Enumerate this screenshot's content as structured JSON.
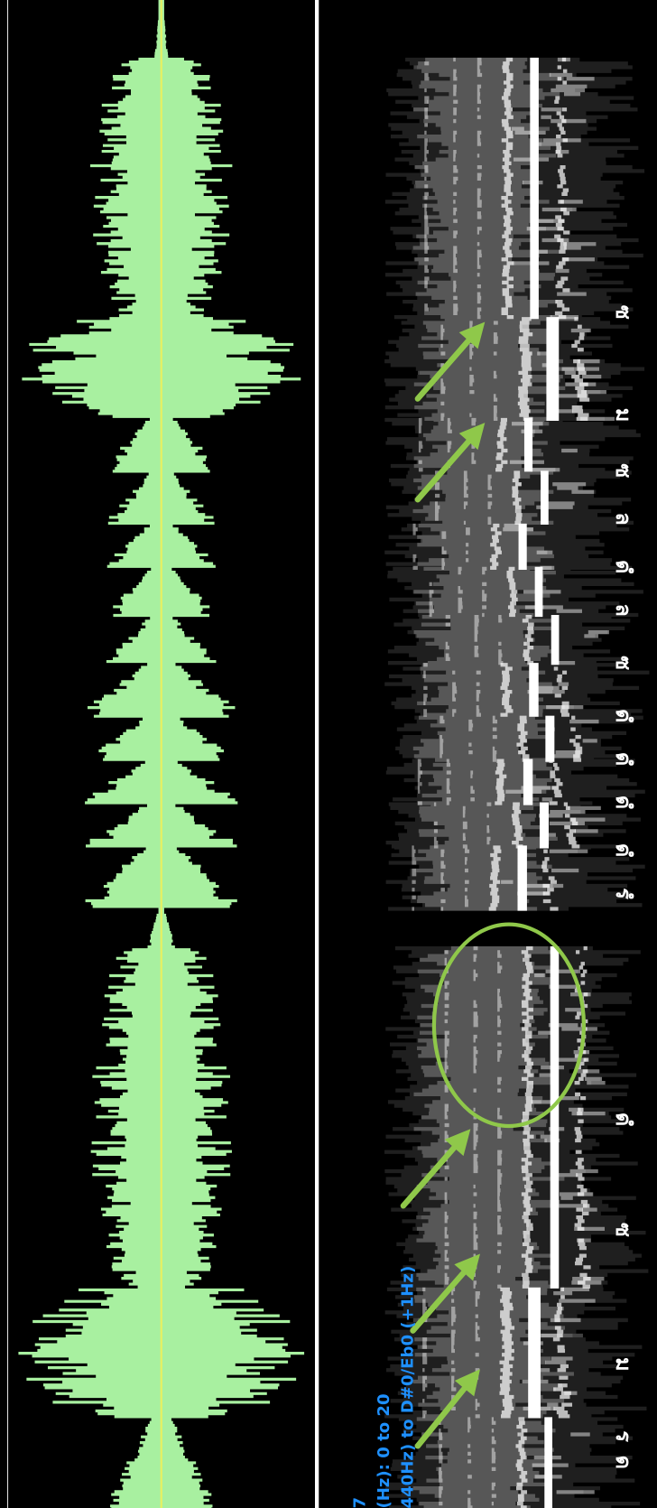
{
  "note_labels": [
    "ซ",
    "ม",
    "ซ",
    "ล",
    "ดํ",
    "ล",
    "ซ",
    "ดํ",
    "ดํ",
    "ดํ",
    "ดํ",
    "รํ",
    "ดํ",
    "ซ",
    "ม",
    "ร",
    "ด"
  ],
  "info_text": [
    "7",
    "(Hz): 0 to 20",
    "440Hz) to D#0/Eb0 (+1Hz)"
  ]
}
